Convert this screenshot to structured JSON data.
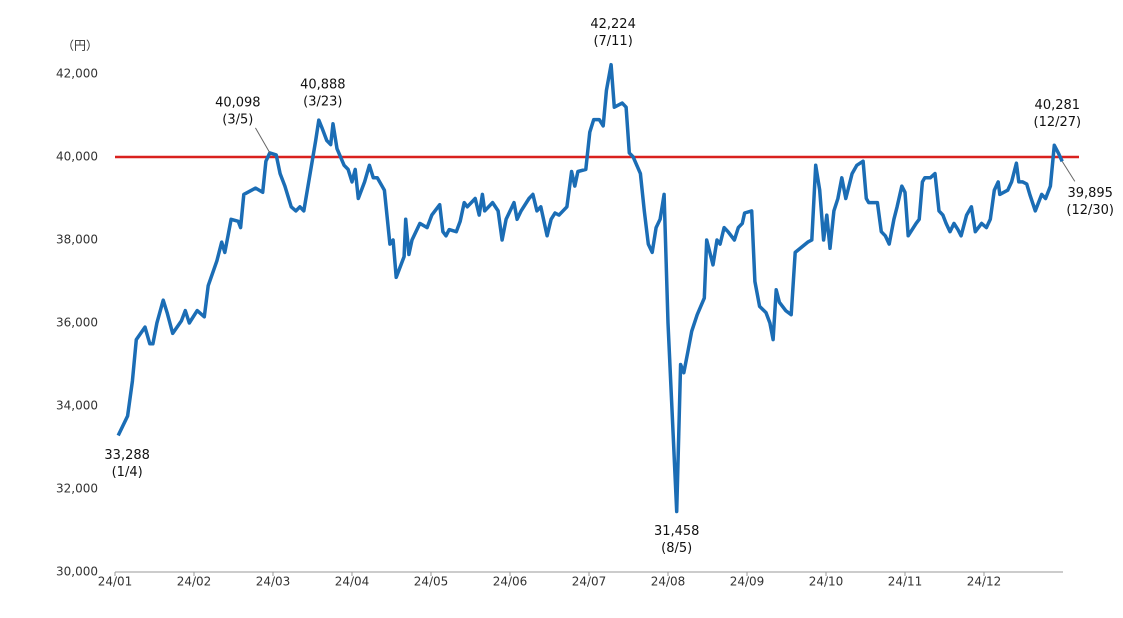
{
  "chart_data": {
    "type": "line",
    "unit_label": "（円）",
    "xlim": [
      0,
      12
    ],
    "xticks": [
      {
        "value": 0,
        "label": "24/01"
      },
      {
        "value": 1,
        "label": "24/02"
      },
      {
        "value": 2,
        "label": "24/03"
      },
      {
        "value": 3,
        "label": "24/04"
      },
      {
        "value": 4,
        "label": "24/05"
      },
      {
        "value": 5,
        "label": "24/06"
      },
      {
        "value": 6,
        "label": "24/07"
      },
      {
        "value": 7,
        "label": "24/08"
      },
      {
        "value": 8,
        "label": "24/09"
      },
      {
        "value": 9,
        "label": "24/10"
      },
      {
        "value": 10,
        "label": "24/11"
      },
      {
        "value": 11,
        "label": "24/12"
      }
    ],
    "ylim": [
      30000,
      42000
    ],
    "yticks": [
      {
        "value": 30000,
        "label": "30,000"
      },
      {
        "value": 32000,
        "label": "32,000"
      },
      {
        "value": 34000,
        "label": "34,000"
      },
      {
        "value": 36000,
        "label": "36,000"
      },
      {
        "value": 38000,
        "label": "38,000"
      },
      {
        "value": 40000,
        "label": "40,000"
      },
      {
        "value": 42000,
        "label": "42,000"
      }
    ],
    "reference_line": {
      "value": 40000,
      "color": "#d9211e"
    },
    "series": [
      {
        "color": "#1b6db5",
        "x": [
          0.04,
          0.16,
          0.22,
          0.27,
          0.38,
          0.44,
          0.48,
          0.53,
          0.61,
          0.66,
          0.73,
          0.84,
          0.89,
          0.94,
          1.04,
          1.13,
          1.18,
          1.29,
          1.35,
          1.39,
          1.43,
          1.47,
          1.56,
          1.59,
          1.63,
          1.78,
          1.87,
          1.91,
          1.96,
          2.04,
          2.09,
          2.15,
          2.23,
          2.29,
          2.34,
          2.39,
          2.54,
          2.58,
          2.62,
          2.68,
          2.73,
          2.76,
          2.81,
          2.9,
          2.95,
          3.0,
          3.04,
          3.08,
          3.16,
          3.22,
          3.27,
          3.32,
          3.41,
          3.48,
          3.52,
          3.56,
          3.66,
          3.68,
          3.72,
          3.76,
          3.86,
          3.95,
          4.01,
          4.11,
          4.15,
          4.19,
          4.23,
          4.32,
          4.37,
          4.42,
          4.46,
          4.56,
          4.61,
          4.65,
          4.68,
          4.78,
          4.85,
          4.9,
          4.95,
          5.05,
          5.09,
          5.14,
          5.24,
          5.29,
          5.34,
          5.39,
          5.47,
          5.52,
          5.57,
          5.62,
          5.72,
          5.78,
          5.82,
          5.86,
          5.96,
          6.01,
          6.06,
          6.13,
          6.18,
          6.22,
          6.28,
          6.32,
          6.42,
          6.47,
          6.51,
          6.56,
          6.65,
          6.7,
          6.75,
          6.8,
          6.85,
          6.9,
          6.95,
          7.0,
          7.11,
          7.16,
          7.2,
          7.25,
          7.3,
          7.37,
          7.46,
          7.49,
          7.57,
          7.62,
          7.66,
          7.71,
          7.76,
          7.84,
          7.89,
          7.94,
          7.97,
          8.06,
          8.1,
          8.16,
          8.24,
          8.29,
          8.33,
          8.37,
          8.41,
          8.49,
          8.56,
          8.61,
          8.77,
          8.82,
          8.87,
          8.92,
          8.97,
          9.01,
          9.05,
          9.1,
          9.15,
          9.2,
          9.25,
          9.33,
          9.39,
          9.47,
          9.51,
          9.54,
          9.65,
          9.7,
          9.75,
          9.8,
          9.86,
          9.9,
          9.96,
          10.0,
          10.04,
          10.14,
          10.18,
          10.22,
          10.25,
          10.32,
          10.38,
          10.43,
          10.48,
          10.52,
          10.57,
          10.62,
          10.67,
          10.71,
          10.78,
          10.84,
          10.89,
          10.97,
          11.03,
          11.08,
          11.13,
          11.18,
          11.2,
          11.3,
          11.35,
          11.41,
          11.44,
          11.49,
          11.54,
          11.58,
          11.65,
          11.73,
          11.78,
          11.84,
          11.89,
          11.94,
          11.99
        ],
        "values": [
          33288,
          33760,
          34600,
          35600,
          35900,
          35500,
          35500,
          36000,
          36550,
          36250,
          35750,
          36050,
          36300,
          36000,
          36300,
          36150,
          36900,
          37500,
          37950,
          37700,
          38100,
          38500,
          38450,
          38300,
          39100,
          39250,
          39150,
          39900,
          40098,
          40050,
          39600,
          39300,
          38800,
          38700,
          38800,
          38700,
          40400,
          40888,
          40700,
          40400,
          40300,
          40800,
          40200,
          39800,
          39700,
          39400,
          39700,
          39000,
          39400,
          39800,
          39500,
          39500,
          39200,
          37900,
          38000,
          37100,
          37600,
          38500,
          37650,
          38000,
          38400,
          38300,
          38600,
          38850,
          38200,
          38100,
          38250,
          38200,
          38450,
          38900,
          38800,
          39000,
          38600,
          39100,
          38700,
          38900,
          38700,
          38000,
          38500,
          38900,
          38500,
          38700,
          39000,
          39100,
          38700,
          38800,
          38100,
          38500,
          38650,
          38600,
          38800,
          39650,
          39300,
          39650,
          39700,
          40600,
          40900,
          40900,
          40750,
          41600,
          42224,
          41200,
          41300,
          41200,
          40100,
          40000,
          39600,
          38700,
          37900,
          37700,
          38300,
          38500,
          39100,
          36000,
          31458,
          35000,
          34800,
          35300,
          35800,
          36200,
          36600,
          38000,
          37400,
          38000,
          37900,
          38300,
          38200,
          38000,
          38300,
          38400,
          38650,
          38700,
          37000,
          36400,
          36250,
          36000,
          35600,
          36800,
          36500,
          36300,
          36200,
          37700,
          37950,
          38000,
          39800,
          39200,
          38000,
          38600,
          37800,
          38700,
          39000,
          39500,
          39000,
          39600,
          39800,
          39900,
          39000,
          38900,
          38900,
          38200,
          38100,
          37900,
          38500,
          38800,
          39300,
          39150,
          38100,
          38400,
          38500,
          39400,
          39500,
          39500,
          39600,
          38700,
          38600,
          38400,
          38200,
          38400,
          38250,
          38100,
          38600,
          38800,
          38200,
          38400,
          38300,
          38500,
          39200,
          39400,
          39100,
          39200,
          39400,
          39850,
          39400,
          39400,
          39350,
          39100,
          38700,
          39100,
          39000,
          39300,
          40281,
          40100,
          39895
        ]
      }
    ],
    "annotations": [
      {
        "label": "33,288",
        "date": "(1/4)",
        "x": 0.04,
        "y": 33288
      },
      {
        "label": "40,098",
        "date": "(3/5)",
        "x": 1.96,
        "y": 40098
      },
      {
        "label": "40,888",
        "date": "(3/23)",
        "x": 2.58,
        "y": 40888
      },
      {
        "label": "42,224",
        "date": "(7/11)",
        "x": 6.28,
        "y": 42224
      },
      {
        "label": "31,458",
        "date": "(8/5)",
        "x": 7.11,
        "y": 31458
      },
      {
        "label": "40,281",
        "date": "(12/27)",
        "x": 11.89,
        "y": 40281
      },
      {
        "label": "39,895",
        "date": "(12/30)",
        "x": 11.99,
        "y": 39895
      }
    ]
  }
}
